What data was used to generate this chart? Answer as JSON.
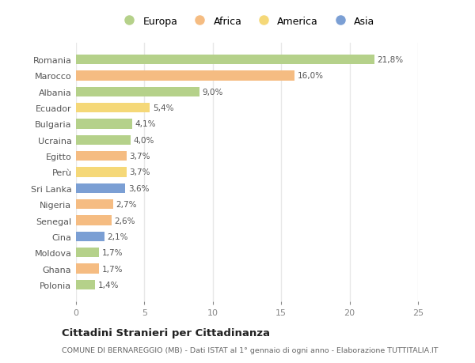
{
  "countries": [
    "Romania",
    "Marocco",
    "Albania",
    "Ecuador",
    "Bulgaria",
    "Ucraina",
    "Egitto",
    "Perù",
    "Sri Lanka",
    "Nigeria",
    "Senegal",
    "Cina",
    "Moldova",
    "Ghana",
    "Polonia"
  ],
  "values": [
    21.8,
    16.0,
    9.0,
    5.4,
    4.1,
    4.0,
    3.7,
    3.7,
    3.6,
    2.7,
    2.6,
    2.1,
    1.7,
    1.7,
    1.4
  ],
  "labels": [
    "21,8%",
    "16,0%",
    "9,0%",
    "5,4%",
    "4,1%",
    "4,0%",
    "3,7%",
    "3,7%",
    "3,6%",
    "2,7%",
    "2,6%",
    "2,1%",
    "1,7%",
    "1,7%",
    "1,4%"
  ],
  "categories": [
    "Europa",
    "Africa",
    "America",
    "Asia"
  ],
  "bar_colors": [
    "#b5d18a",
    "#f5bc82",
    "#b5d18a",
    "#f5d878",
    "#b5d18a",
    "#b5d18a",
    "#f5bc82",
    "#f5d878",
    "#7b9fd4",
    "#f5bc82",
    "#f5bc82",
    "#7b9fd4",
    "#b5d18a",
    "#f5bc82",
    "#b5d18a"
  ],
  "legend_colors": [
    "#b5d18a",
    "#f5bc82",
    "#f5d878",
    "#7b9fd4"
  ],
  "background_color": "#ffffff",
  "plot_bg_color": "#ffffff",
  "title": "Cittadini Stranieri per Cittadinanza",
  "subtitle": "COMUNE DI BERNAREGGIO (MB) - Dati ISTAT al 1° gennaio di ogni anno - Elaborazione TUTTITALIA.IT",
  "xlim": [
    0,
    25
  ],
  "xticks": [
    0,
    5,
    10,
    15,
    20,
    25
  ],
  "grid_color": "#e8e8e8"
}
